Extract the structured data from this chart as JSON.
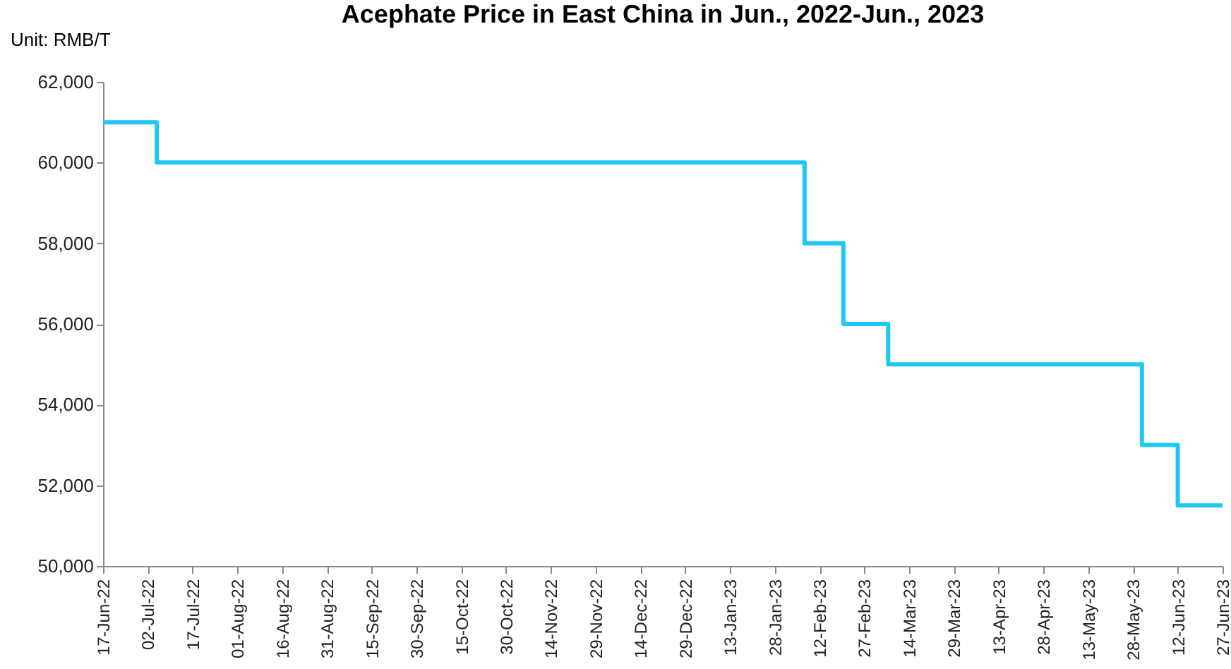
{
  "chart_data": {
    "type": "step",
    "title": "Acephate Price in East China in Jun., 2022-Jun., 2023",
    "ylabel": "Unit: RMB/T",
    "x": [
      "2022-06-17",
      "2022-07-05",
      "2023-02-07",
      "2023-02-20",
      "2023-03-07",
      "2023-05-31",
      "2023-06-12",
      "2023-06-27"
    ],
    "series": [
      {
        "color": "#1ec8f5",
        "values": [
          61000,
          60000,
          58000,
          56000,
          55000,
          53000,
          51500,
          51500
        ]
      }
    ],
    "xlim": [
      "2022-06-17",
      "2023-06-27"
    ],
    "xticks": [
      {
        "value": "2022-06-17",
        "label": "17-Jun-22"
      },
      {
        "value": "2022-07-02",
        "label": "02-Jul-22"
      },
      {
        "value": "2022-07-17",
        "label": "17-Jul-22"
      },
      {
        "value": "2022-08-01",
        "label": "01-Aug-22"
      },
      {
        "value": "2022-08-16",
        "label": "16-Aug-22"
      },
      {
        "value": "2022-08-31",
        "label": "31-Aug-22"
      },
      {
        "value": "2022-09-15",
        "label": "15-Sep-22"
      },
      {
        "value": "2022-09-30",
        "label": "30-Sep-22"
      },
      {
        "value": "2022-10-15",
        "label": "15-Oct-22"
      },
      {
        "value": "2022-10-30",
        "label": "30-Oct-22"
      },
      {
        "value": "2022-11-14",
        "label": "14-Nov-22"
      },
      {
        "value": "2022-11-29",
        "label": "29-Nov-22"
      },
      {
        "value": "2022-12-14",
        "label": "14-Dec-22"
      },
      {
        "value": "2022-12-29",
        "label": "29-Dec-22"
      },
      {
        "value": "2023-01-13",
        "label": "13-Jan-23"
      },
      {
        "value": "2023-01-28",
        "label": "28-Jan-23"
      },
      {
        "value": "2023-02-12",
        "label": "12-Feb-23"
      },
      {
        "value": "2023-02-27",
        "label": "27-Feb-23"
      },
      {
        "value": "2023-03-14",
        "label": "14-Mar-23"
      },
      {
        "value": "2023-03-29",
        "label": "29-Mar-23"
      },
      {
        "value": "2023-04-13",
        "label": "13-Apr-23"
      },
      {
        "value": "2023-04-28",
        "label": "28-Apr-23"
      },
      {
        "value": "2023-05-13",
        "label": "13-May-23"
      },
      {
        "value": "2023-05-28",
        "label": "28-May-23"
      },
      {
        "value": "2023-06-12",
        "label": "12-Jun-23"
      },
      {
        "value": "2023-06-27",
        "label": "27-Jun-23"
      }
    ],
    "ylim": [
      50000,
      62000
    ],
    "yticks": [
      {
        "value": 50000,
        "label": "50,000"
      },
      {
        "value": 52000,
        "label": "52,000"
      },
      {
        "value": 54000,
        "label": "54,000"
      },
      {
        "value": 56000,
        "label": "56,000"
      },
      {
        "value": 58000,
        "label": "58,000"
      },
      {
        "value": 60000,
        "label": "60,000"
      },
      {
        "value": 62000,
        "label": "62,000"
      }
    ],
    "grid": false,
    "marker": "none",
    "line_style": "solid"
  }
}
